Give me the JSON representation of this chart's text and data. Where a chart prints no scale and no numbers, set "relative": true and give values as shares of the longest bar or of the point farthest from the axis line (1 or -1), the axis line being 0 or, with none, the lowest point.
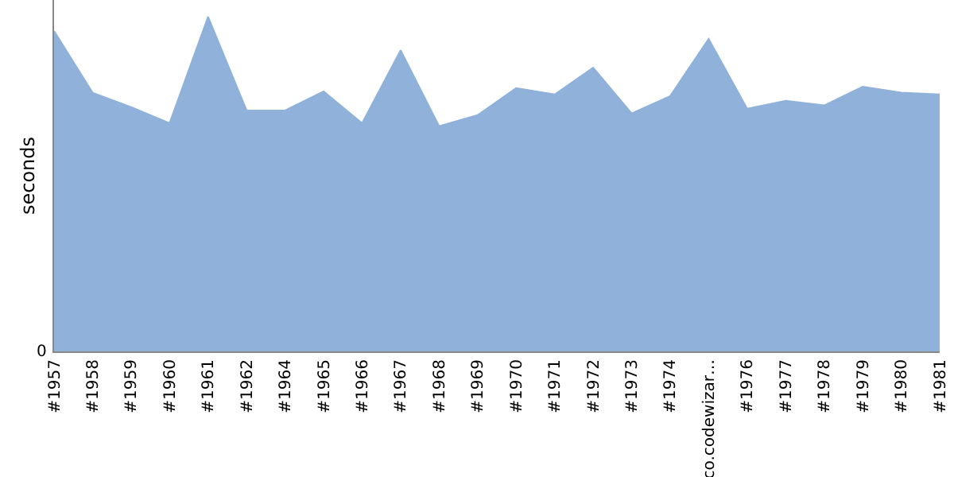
{
  "chart_data": {
    "type": "area",
    "ylabel": "seconds",
    "relative": true,
    "annotations": [
      "0"
    ],
    "color": "#8fb1da",
    "categories": [
      "#1957",
      "#1958",
      "#1959",
      "#1960",
      "#1961",
      "#1962",
      "#1964",
      "#1965",
      "#1966",
      "#1967",
      "#1968",
      "#1969",
      "#1970",
      "#1971",
      "#1972",
      "#1973",
      "#1974",
      "co.codewizar…",
      "#1976",
      "#1977",
      "#1978",
      "#1979",
      "#1980",
      "#1981"
    ],
    "values": [
      0.957,
      0.773,
      0.73,
      0.682,
      1,
      0.72,
      0.72,
      0.777,
      0.682,
      0.9,
      0.673,
      0.706,
      0.787,
      0.768,
      0.848,
      0.711,
      0.763,
      0.934,
      0.725,
      0.749,
      0.735,
      0.791,
      0.773,
      0.768
    ]
  }
}
